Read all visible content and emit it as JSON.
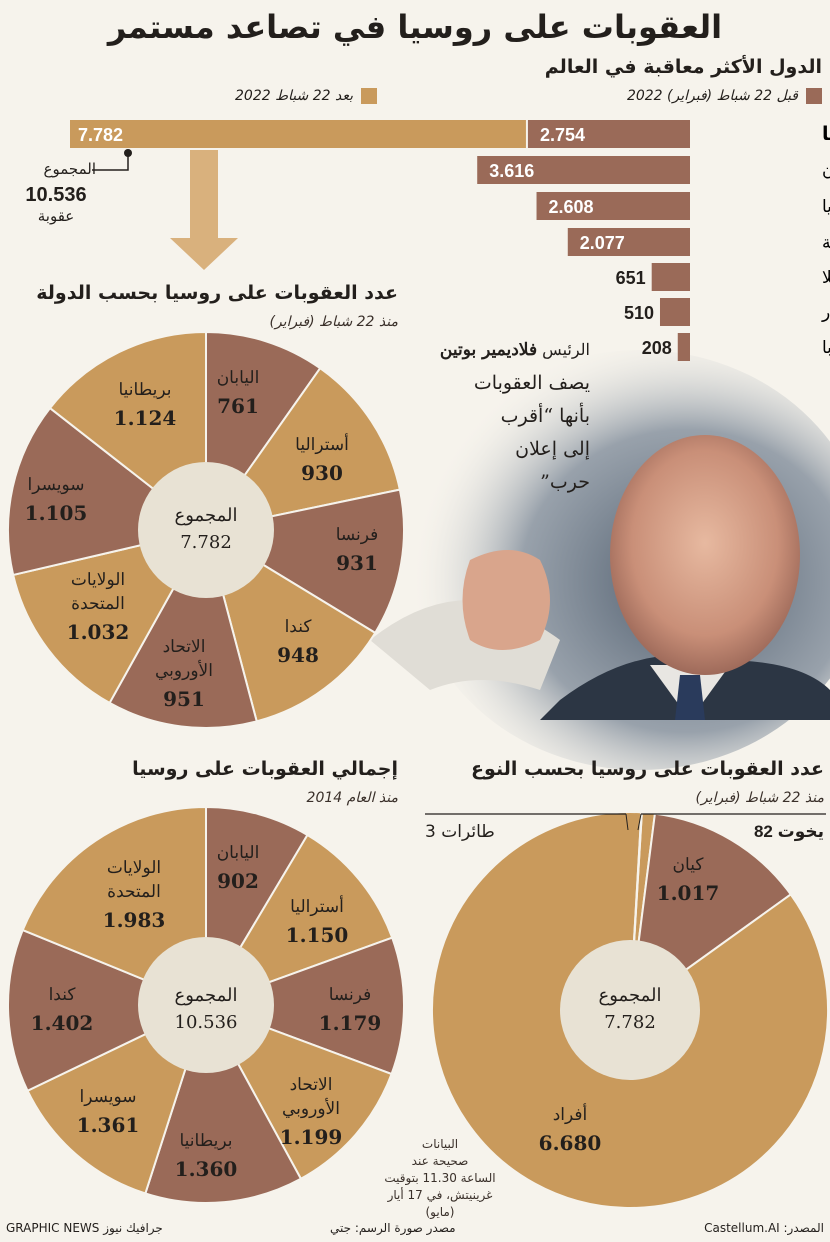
{
  "title": "العقوبات على روسيا في تصاعد مستمر",
  "top_chart": {
    "heading": "الدول الأكثر معاقبة في العالم",
    "legend_before": "قبل 22 شباط (فبراير) 2022",
    "legend_after": "بعد 22 شباط 2022",
    "colors": {
      "before": "#9a6a58",
      "after": "#c99a5c"
    },
    "total_label": "المجموع",
    "total_value": "10.536",
    "total_unit": "عقوبة"
  },
  "pie1": {
    "heading": "عدد العقوبات على روسيا بحسب الدولة",
    "sub": "منذ 22 شباط (فبراير)",
    "center_label": "المجموع",
    "center_value": "7.782"
  },
  "pie2": {
    "heading": "إجمالي العقوبات على روسيا",
    "sub": "منذ العام 2014",
    "center_label": "المجموع",
    "center_value": "10.536"
  },
  "pie3": {
    "heading": "عدد العقوبات على روسيا بحسب النوع",
    "sub": "منذ 22 شباط (فبراير)",
    "center_label": "المجموع",
    "center_value": "7.782",
    "callout_left": "طائرات 3",
    "callout_right": "يخوت 82"
  },
  "quote": {
    "name_prefix": "الرئيس ",
    "name": "فلاديمير بوتين",
    "l1": "يصف العقوبات",
    "l2": "بأنها “أقرب",
    "l3": "إلى إعلان",
    "l4": "حرب”"
  },
  "note": {
    "l1": "البيانات",
    "l2": "صحيحة عند",
    "l3": "الساعة 11.30 بتوقيت",
    "l4": "غرينيتش، في 17 أيار (مايو)"
  },
  "footer": {
    "source": "المصدر: Castellum.AI",
    "photo": "مصدر صورة الرسم: جتي",
    "brand": "GRAPHIC NEWS جرافيك نيوز"
  },
  "chart_data": [
    {
      "type": "bar",
      "title": "الدول الأكثر معاقبة في العالم",
      "categories": [
        "روسيا",
        "إيران",
        "سوريا",
        "كوريا الشمالية",
        "فنزويلا",
        "ميانمار",
        "كوبا"
      ],
      "series": [
        {
          "name": "قبل 22 شباط (فبراير) 2022",
          "values": [
            2754,
            3616,
            2608,
            2077,
            651,
            510,
            208
          ],
          "labels": [
            "2.754",
            "3.616",
            "2.608",
            "2.077",
            "651",
            "510",
            "208"
          ]
        },
        {
          "name": "بعد 22 شباط 2022",
          "values": [
            7782,
            0,
            0,
            0,
            0,
            0,
            0
          ],
          "labels": [
            "7.782",
            "",
            "",
            "",
            "",
            "",
            ""
          ]
        }
      ]
    },
    {
      "type": "pie",
      "title": "عدد العقوبات على روسيا بحسب الدولة",
      "slices": [
        {
          "label": "اليابان",
          "value": 761,
          "display": "761",
          "color": "#9a6a58"
        },
        {
          "label": "أستراليا",
          "value": 930,
          "display": "930",
          "color": "#c99a5c"
        },
        {
          "label": "فرنسا",
          "value": 931,
          "display": "931",
          "color": "#9a6a58"
        },
        {
          "label": "كندا",
          "value": 948,
          "display": "948",
          "color": "#c99a5c"
        },
        {
          "label": "الاتحاد الأوروبي",
          "value": 951,
          "display": "951",
          "color": "#9a6a58"
        },
        {
          "label": "الولايات المتحدة",
          "value": 1032,
          "display": "1.032",
          "color": "#c99a5c"
        },
        {
          "label": "سويسرا",
          "value": 1105,
          "display": "1.105",
          "color": "#9a6a58"
        },
        {
          "label": "بريطانيا",
          "value": 1124,
          "display": "1.124",
          "color": "#c99a5c"
        }
      ]
    },
    {
      "type": "pie",
      "title": "إجمالي العقوبات على روسيا",
      "slices": [
        {
          "label": "اليابان",
          "value": 902,
          "display": "902",
          "color": "#9a6a58"
        },
        {
          "label": "أستراليا",
          "value": 1150,
          "display": "1.150",
          "color": "#c99a5c"
        },
        {
          "label": "فرنسا",
          "value": 1179,
          "display": "1.179",
          "color": "#9a6a58"
        },
        {
          "label": "الاتحاد الأوروبي",
          "value": 1199,
          "display": "1.199",
          "color": "#c99a5c"
        },
        {
          "label": "بريطانيا",
          "value": 1360,
          "display": "1.360",
          "color": "#9a6a58"
        },
        {
          "label": "سويسرا",
          "value": 1361,
          "display": "1.361",
          "color": "#c99a5c"
        },
        {
          "label": "كندا",
          "value": 1402,
          "display": "1.402",
          "color": "#9a6a58"
        },
        {
          "label": "الولايات المتحدة",
          "value": 1983,
          "display": "1.983",
          "color": "#c99a5c"
        }
      ]
    },
    {
      "type": "pie",
      "title": "عدد العقوبات على روسيا بحسب النوع",
      "slices": [
        {
          "label": "كيان",
          "value": 1017,
          "display": "1.017",
          "color": "#9a6a58"
        },
        {
          "label": "أفراد",
          "value": 6680,
          "display": "6.680",
          "color": "#c99a5c"
        },
        {
          "label": "طائرات",
          "value": 3,
          "display": "3",
          "color": "#c99a5c"
        },
        {
          "label": "يخوت",
          "value": 82,
          "display": "82",
          "color": "#c99a5c"
        }
      ]
    }
  ]
}
